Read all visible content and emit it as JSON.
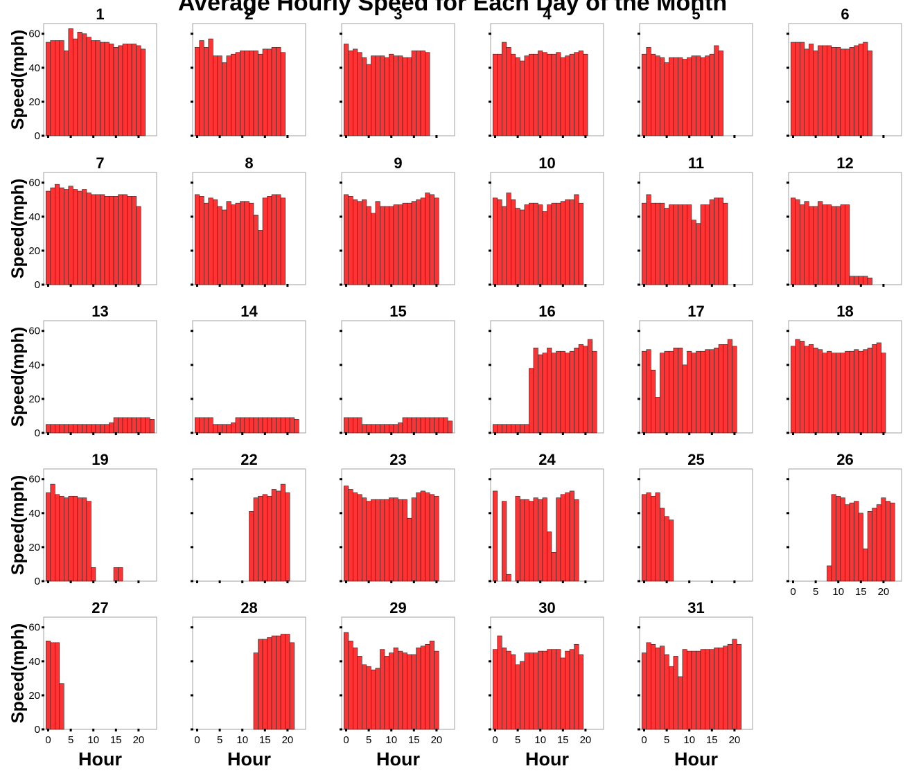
{
  "chart_data": {
    "type": "bar",
    "title": "Average Hourly Speed for Each Day of the Month",
    "xlabel": "Hour",
    "ylabel": "Speed(mph)",
    "xlim": [
      -1,
      24
    ],
    "ylim": [
      0,
      66
    ],
    "x_ticks": [
      0,
      5,
      10,
      15,
      20
    ],
    "y_ticks": [
      0,
      20,
      40,
      60
    ],
    "bar_color": "#ff3333",
    "bar_edge_color": "#222222",
    "grid": false,
    "panels": [
      {
        "day": "1",
        "values": [
          55,
          56,
          56,
          56,
          50,
          63,
          57,
          61,
          60,
          58,
          56,
          56,
          55,
          55,
          54,
          52,
          53,
          54,
          54,
          54,
          53,
          51
        ]
      },
      {
        "day": "2",
        "values": [
          52,
          56,
          52,
          57,
          47,
          47,
          43,
          47,
          48,
          49,
          50,
          50,
          50,
          50,
          48,
          51,
          51,
          52,
          52,
          49
        ]
      },
      {
        "day": "3",
        "values": [
          54,
          50,
          51,
          49,
          46,
          42,
          47,
          47,
          47,
          46,
          48,
          47,
          47,
          46,
          46,
          50,
          50,
          50,
          49
        ]
      },
      {
        "day": "4",
        "values": [
          48,
          48,
          55,
          52,
          48,
          46,
          44,
          47,
          48,
          48,
          50,
          49,
          48,
          48,
          49,
          46,
          47,
          48,
          49,
          50,
          48
        ]
      },
      {
        "day": "5",
        "values": [
          48,
          52,
          48,
          47,
          46,
          43,
          46,
          46,
          46,
          45,
          46,
          47,
          47,
          46,
          47,
          48,
          53,
          50
        ]
      },
      {
        "day": "6",
        "values": [
          55,
          55,
          55,
          51,
          54,
          50,
          53,
          53,
          53,
          52,
          52,
          51,
          51,
          52,
          53,
          54,
          55,
          50
        ]
      },
      {
        "day": "7",
        "values": [
          55,
          57,
          59,
          57,
          56,
          58,
          56,
          55,
          56,
          54,
          53,
          53,
          53,
          52,
          52,
          52,
          53,
          53,
          52,
          52,
          46
        ]
      },
      {
        "day": "8",
        "values": [
          53,
          52,
          48,
          51,
          50,
          46,
          44,
          49,
          47,
          48,
          49,
          49,
          48,
          41,
          32,
          51,
          52,
          53,
          53,
          51
        ]
      },
      {
        "day": "9",
        "values": [
          53,
          52,
          50,
          49,
          50,
          46,
          42,
          49,
          46,
          46,
          46,
          47,
          47,
          48,
          48,
          49,
          50,
          51,
          54,
          53,
          51
        ]
      },
      {
        "day": "10",
        "values": [
          51,
          50,
          46,
          54,
          50,
          45,
          44,
          47,
          48,
          48,
          47,
          43,
          47,
          48,
          48,
          49,
          50,
          50,
          53,
          48
        ]
      },
      {
        "day": "11",
        "values": [
          48,
          53,
          48,
          48,
          48,
          45,
          47,
          47,
          47,
          47,
          47,
          38,
          36,
          47,
          47,
          50,
          51,
          51,
          48
        ]
      },
      {
        "day": "12",
        "values": [
          51,
          50,
          47,
          49,
          46,
          46,
          49,
          47,
          47,
          46,
          46,
          47,
          47,
          5,
          5,
          5,
          5,
          4
        ]
      },
      {
        "day": "13",
        "values": [
          5,
          5,
          5,
          5,
          5,
          5,
          5,
          5,
          5,
          5,
          5,
          5,
          5,
          5,
          6,
          9,
          9,
          9,
          9,
          9,
          9,
          9,
          9,
          8
        ]
      },
      {
        "day": "14",
        "values": [
          9,
          9,
          9,
          9,
          5,
          5,
          5,
          5,
          6,
          9,
          9,
          9,
          9,
          9,
          9,
          9,
          9,
          9,
          9,
          9,
          9,
          9,
          8
        ]
      },
      {
        "day": "15",
        "values": [
          9,
          9,
          9,
          9,
          5,
          5,
          5,
          5,
          5,
          5,
          5,
          5,
          6,
          9,
          9,
          9,
          9,
          9,
          9,
          9,
          9,
          9,
          9,
          7
        ]
      },
      {
        "day": "16",
        "values": [
          5,
          5,
          5,
          5,
          5,
          5,
          5,
          5,
          38,
          50,
          46,
          47,
          50,
          47,
          48,
          48,
          47,
          48,
          50,
          52,
          51,
          55,
          48
        ]
      },
      {
        "day": "17",
        "values": [
          48,
          49,
          37,
          21,
          47,
          48,
          48,
          50,
          50,
          40,
          48,
          47,
          48,
          48,
          49,
          49,
          50,
          52,
          52,
          55,
          51
        ]
      },
      {
        "day": "18",
        "values": [
          51,
          55,
          54,
          51,
          52,
          50,
          49,
          47,
          48,
          47,
          47,
          47,
          48,
          48,
          49,
          48,
          49,
          50,
          52,
          53,
          47
        ]
      },
      {
        "day": "19",
        "values": [
          52,
          57,
          51,
          50,
          49,
          50,
          50,
          49,
          49,
          47,
          8,
          null,
          null,
          null,
          null,
          8,
          8
        ]
      },
      {
        "day": "22",
        "values": [
          null,
          null,
          null,
          null,
          null,
          null,
          null,
          null,
          null,
          null,
          null,
          null,
          41,
          49,
          50,
          51,
          50,
          54,
          53,
          57,
          52
        ]
      },
      {
        "day": "23",
        "values": [
          56,
          54,
          52,
          51,
          49,
          47,
          48,
          48,
          48,
          48,
          49,
          49,
          48,
          48,
          37,
          49,
          52,
          53,
          52,
          51,
          50
        ]
      },
      {
        "day": "24",
        "values": [
          53,
          null,
          47,
          4,
          null,
          50,
          48,
          48,
          47,
          49,
          48,
          49,
          29,
          17,
          49,
          51,
          52,
          53,
          48
        ]
      },
      {
        "day": "25",
        "values": [
          51,
          52,
          50,
          52,
          43,
          38,
          36
        ]
      },
      {
        "day": "26",
        "values": [
          null,
          null,
          null,
          null,
          null,
          null,
          null,
          null,
          9,
          51,
          50,
          49,
          45,
          46,
          47,
          40,
          19,
          41,
          43,
          45,
          49,
          47,
          46
        ]
      },
      {
        "day": "27",
        "values": [
          52,
          51,
          51,
          27
        ]
      },
      {
        "day": "28",
        "values": [
          null,
          null,
          null,
          null,
          null,
          null,
          null,
          null,
          null,
          null,
          null,
          null,
          null,
          45,
          53,
          53,
          54,
          55,
          55,
          56,
          56,
          51
        ]
      },
      {
        "day": "29",
        "values": [
          57,
          52,
          48,
          43,
          38,
          37,
          35,
          36,
          47,
          43,
          45,
          48,
          46,
          45,
          44,
          44,
          48,
          49,
          50,
          52,
          46
        ]
      },
      {
        "day": "30",
        "values": [
          47,
          55,
          48,
          46,
          44,
          38,
          40,
          45,
          45,
          45,
          46,
          46,
          47,
          47,
          47,
          42,
          46,
          47,
          50,
          44
        ]
      },
      {
        "day": "31",
        "values": [
          45,
          51,
          50,
          48,
          49,
          44,
          37,
          43,
          31,
          47,
          46,
          46,
          46,
          47,
          47,
          47,
          48,
          48,
          49,
          50,
          53,
          50
        ]
      }
    ]
  }
}
